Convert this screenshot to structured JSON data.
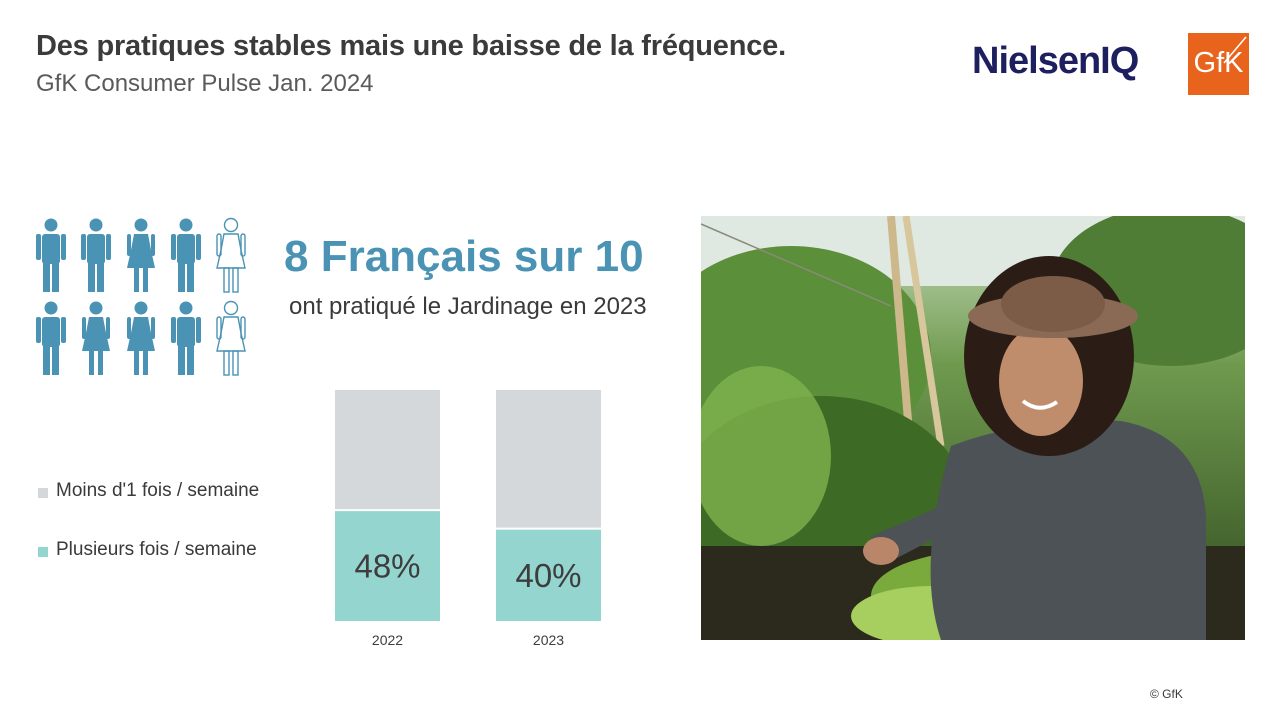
{
  "header": {
    "title": "Des pratiques stables mais une baisse de la fréquence.",
    "subtitle": "GfK Consumer Pulse Jan. 2024"
  },
  "logos": {
    "nielsen": "NielsenIQ",
    "gfk": "GfK"
  },
  "infographic": {
    "headline": "8 Français sur 10",
    "subline": "ont pratiqué le Jardinage en 2023",
    "people_total": 10,
    "people_filled": 8,
    "icon": "person-icon"
  },
  "colors": {
    "accent_blue": "#4a93b4",
    "teal": "#95d5cf",
    "grey": "#d5d8da",
    "nielsen_navy": "#1d1f5f",
    "gfk_orange": "#e8631c"
  },
  "chart_data": {
    "type": "bar",
    "stacked": true,
    "categories": [
      "2022",
      "2023"
    ],
    "series": [
      {
        "name": "Plusieurs fois / semaine",
        "values": [
          48,
          40
        ],
        "color": "#95d5cf"
      },
      {
        "name": "Moins d'1 fois / semaine",
        "values": [
          52,
          60
        ],
        "color": "#d5d8da"
      }
    ],
    "data_labels": [
      "48%",
      "40%"
    ],
    "ylim": [
      0,
      100
    ],
    "legend": [
      "Moins d'1 fois / semaine",
      "Plusieurs fois / semaine"
    ],
    "legend_position": "left"
  },
  "photo": {
    "subject": "woman-gardening-photo"
  },
  "footer": {
    "copyright": "© GfK"
  }
}
